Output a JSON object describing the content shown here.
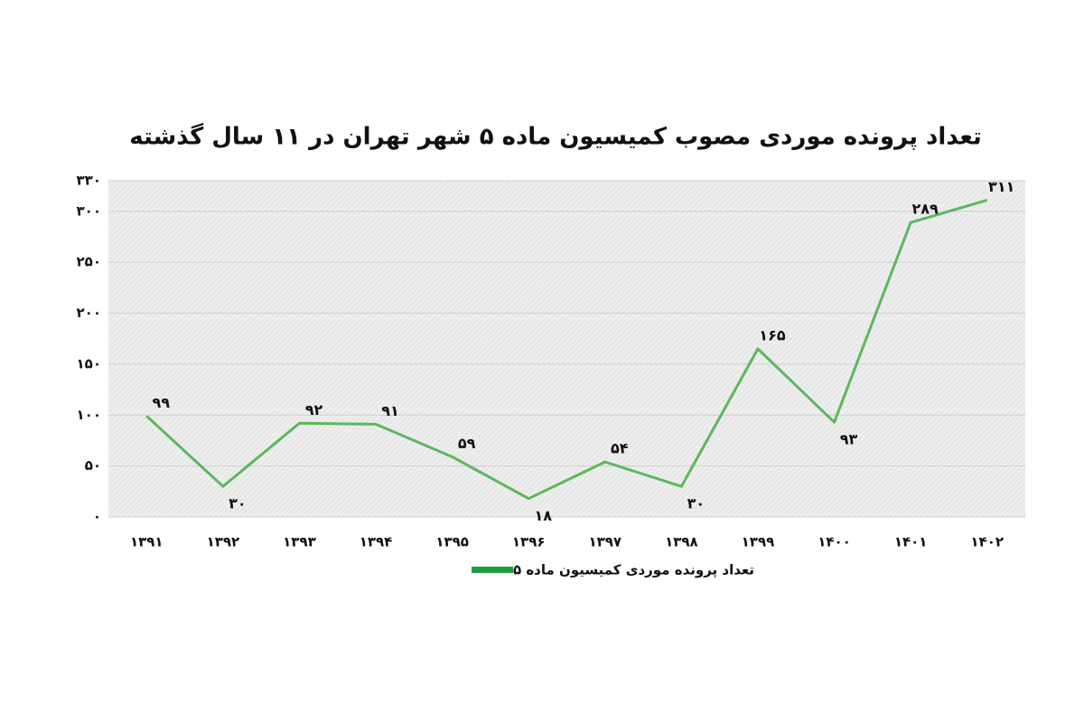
{
  "chart_data": {
    "type": "line",
    "title": "تعداد پرونده موردی مصوب کمیسیون ماده ۵ شهر تهران در ۱۱ سال گذشته",
    "categories": [
      "۱۳۹۱",
      "۱۳۹۲",
      "۱۳۹۳",
      "۱۳۹۴",
      "۱۳۹۵",
      "۱۳۹۶",
      "۱۳۹۷",
      "۱۳۹۸",
      "۱۳۹۹",
      "۱۴۰۰",
      "۱۴۰۱",
      "۱۴۰۲"
    ],
    "series": [
      {
        "name": "تعداد پرونده موردی کمیسیون ماده ۵",
        "color": "#5cb85c",
        "values": [
          99,
          30,
          92,
          91,
          59,
          18,
          54,
          30,
          165,
          93,
          289,
          311
        ],
        "value_labels": [
          "۹۹",
          "۳۰",
          "۹۲",
          "۹۱",
          "۵۹",
          "۱۸",
          "۵۴",
          "۳۰",
          "۱۶۵",
          "۹۳",
          "۲۸۹",
          "۳۱۱"
        ]
      }
    ],
    "ylim": [
      0,
      330
    ],
    "yticks": [
      {
        "value": 0,
        "label": "۰"
      },
      {
        "value": 50,
        "label": "۵۰"
      },
      {
        "value": 100,
        "label": "۱۰۰"
      },
      {
        "value": 150,
        "label": "۱۵۰"
      },
      {
        "value": 200,
        "label": "۲۰۰"
      },
      {
        "value": 250,
        "label": "۲۵۰"
      },
      {
        "value": 300,
        "label": "۳۰۰"
      },
      {
        "value": 330,
        "label": "۳۳۰"
      }
    ],
    "grid": true
  }
}
